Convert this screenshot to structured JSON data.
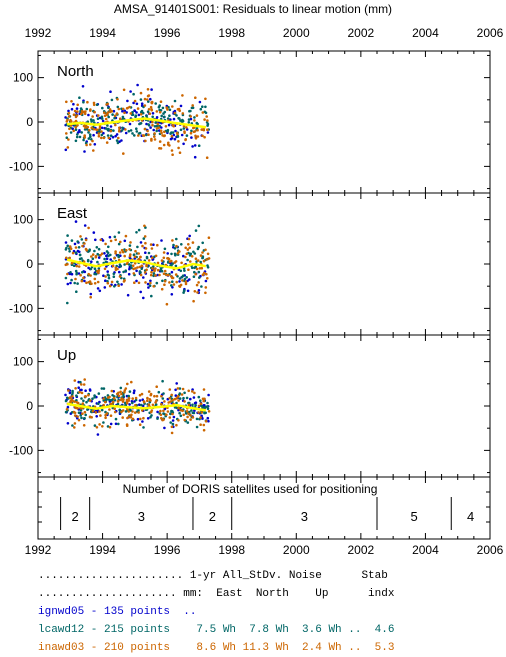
{
  "chart_data": {
    "type": "scatter",
    "title": "AMSA_91401S001: Residuals to linear motion (mm)",
    "x_ticks": [
      "1992",
      "1994",
      "1996",
      "1998",
      "2000",
      "2002",
      "2004",
      "2006"
    ],
    "xlim": [
      1992,
      2006
    ],
    "panels": [
      {
        "name": "North",
        "ylim": [
          -160,
          160
        ],
        "y_ticks": [
          "100",
          "0",
          "-100"
        ]
      },
      {
        "name": "East",
        "ylim": [
          -160,
          160
        ],
        "y_ticks": [
          "100",
          "0",
          "-100"
        ]
      },
      {
        "name": "Up",
        "ylim": [
          -160,
          160
        ],
        "y_ticks": [
          "100",
          "0",
          "-100"
        ]
      }
    ],
    "series": [
      {
        "name": "ignwd05",
        "color": "#0000cc",
        "start": 1992.85,
        "end": 1997.3,
        "points": 135
      },
      {
        "name": "lcawd12",
        "color": "#006666",
        "start": 1992.85,
        "end": 1997.3,
        "points": 215
      },
      {
        "name": "inawd03",
        "color": "#cc6600",
        "start": 1992.85,
        "end": 1997.3,
        "points": 210
      }
    ],
    "smooth_color": "#ffff00",
    "smooth": {
      "North": [
        [
          1992.9,
          -5
        ],
        [
          1993.3,
          -2
        ],
        [
          1993.8,
          -6
        ],
        [
          1994.3,
          -1
        ],
        [
          1994.8,
          4
        ],
        [
          1995.3,
          8
        ],
        [
          1995.8,
          3
        ],
        [
          1996.3,
          -3
        ],
        [
          1996.8,
          -8
        ],
        [
          1997.2,
          -12
        ]
      ],
      "East": [
        [
          1992.9,
          10
        ],
        [
          1993.3,
          3
        ],
        [
          1993.8,
          -5
        ],
        [
          1994.3,
          2
        ],
        [
          1994.8,
          8
        ],
        [
          1995.3,
          4
        ],
        [
          1995.8,
          -4
        ],
        [
          1996.3,
          -10
        ],
        [
          1996.8,
          0
        ],
        [
          1997.2,
          -5
        ]
      ],
      "Up": [
        [
          1992.9,
          5
        ],
        [
          1993.3,
          0
        ],
        [
          1993.8,
          -6
        ],
        [
          1994.3,
          0
        ],
        [
          1994.8,
          -3
        ],
        [
          1995.3,
          -5
        ],
        [
          1995.8,
          -2
        ],
        [
          1996.3,
          2
        ],
        [
          1996.8,
          -5
        ],
        [
          1997.2,
          -10
        ]
      ]
    },
    "spreads": {
      "North": {
        "ignwd05": 28,
        "lcawd12": 24,
        "inawd03": 32
      },
      "East": {
        "ignwd05": 36,
        "lcawd12": 32,
        "inawd03": 34
      },
      "Up": {
        "ignwd05": 20,
        "lcawd12": 20,
        "inawd03": 24
      }
    },
    "satellites": {
      "label": "Number of DORIS satellites used for positioning",
      "segments": [
        {
          "start": 1992.7,
          "end": 1993.6,
          "count": "2"
        },
        {
          "start": 1993.6,
          "end": 1996.8,
          "count": "3"
        },
        {
          "start": 1996.8,
          "end": 1998.0,
          "count": "2"
        },
        {
          "start": 1998.0,
          "end": 2002.5,
          "count": "3"
        },
        {
          "start": 2002.5,
          "end": 2004.8,
          "count": "5"
        },
        {
          "start": 2004.8,
          "end": 2006.0,
          "count": "4"
        }
      ]
    }
  },
  "stats": {
    "header1": "...................... 1-yr All_StDv. Noise      Stab",
    "header2": "..................... mm:  East  North    Up      indx",
    "rows": [
      {
        "text": "ignwd05 - 135 points  ..",
        "color": "#0000cc"
      },
      {
        "text": "lcawd12 - 215 points    7.5 Wh  7.8 Wh  3.6 Wh ..  4.6",
        "color": "#006666"
      },
      {
        "text": "inawd03 - 210 points    8.6 Wh 11.3 Wh  2.4 Wh ..  5.3",
        "color": "#cc6600"
      }
    ]
  }
}
